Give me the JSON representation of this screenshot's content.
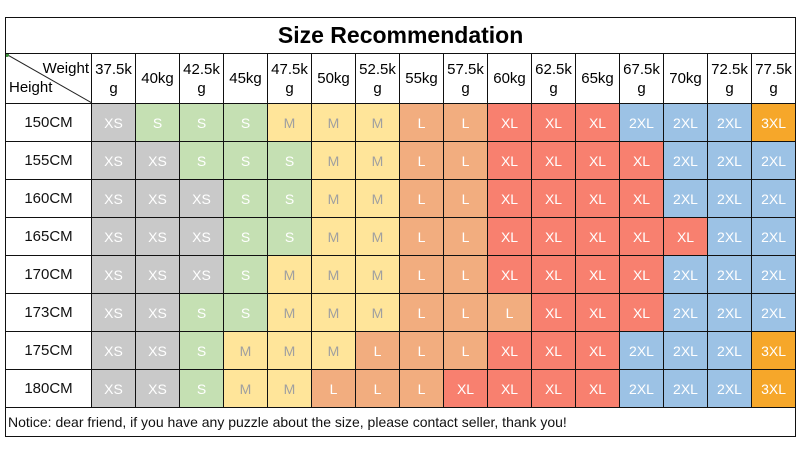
{
  "title": "Size Recommendation",
  "corner": {
    "weight_label": "Weight",
    "height_label": "Height"
  },
  "weights": [
    "37.5k g",
    "40kg",
    "42.5k g",
    "45kg",
    "47.5k g",
    "50kg",
    "52.5k g",
    "55kg",
    "57.5k g",
    "60kg",
    "62.5k g",
    "65kg",
    "67.5k g",
    "70kg",
    "72.5k g",
    "77.5k g"
  ],
  "rows": [
    {
      "height": "150CM",
      "sizes": [
        "XS",
        "S",
        "S",
        "S",
        "M",
        "M",
        "M",
        "L",
        "L",
        "XL",
        "XL",
        "XL",
        "2XL",
        "2XL",
        "2XL",
        "3XL"
      ]
    },
    {
      "height": "155CM",
      "sizes": [
        "XS",
        "XS",
        "S",
        "S",
        "S",
        "M",
        "M",
        "L",
        "L",
        "XL",
        "XL",
        "XL",
        "XL",
        "2XL",
        "2XL",
        "2XL"
      ]
    },
    {
      "height": "160CM",
      "sizes": [
        "XS",
        "XS",
        "XS",
        "S",
        "S",
        "M",
        "M",
        "L",
        "L",
        "XL",
        "XL",
        "XL",
        "XL",
        "2XL",
        "2XL",
        "2XL"
      ]
    },
    {
      "height": "165CM",
      "sizes": [
        "XS",
        "XS",
        "XS",
        "S",
        "S",
        "M",
        "M",
        "L",
        "L",
        "XL",
        "XL",
        "XL",
        "XL",
        "XL",
        "2XL",
        "2XL"
      ]
    },
    {
      "height": "170CM",
      "sizes": [
        "XS",
        "XS",
        "XS",
        "S",
        "M",
        "M",
        "M",
        "L",
        "L",
        "XL",
        "XL",
        "XL",
        "XL",
        "2XL",
        "2XL",
        "2XL"
      ]
    },
    {
      "height": "173CM",
      "sizes": [
        "XS",
        "XS",
        "S",
        "S",
        "M",
        "M",
        "M",
        "L",
        "L",
        "L",
        "XL",
        "XL",
        "XL",
        "2XL",
        "2XL",
        "2XL"
      ]
    },
    {
      "height": "175CM",
      "sizes": [
        "XS",
        "XS",
        "S",
        "M",
        "M",
        "M",
        "L",
        "L",
        "L",
        "XL",
        "XL",
        "XL",
        "2XL",
        "2XL",
        "2XL",
        "3XL"
      ]
    },
    {
      "height": "180CM",
      "sizes": [
        "XS",
        "XS",
        "S",
        "M",
        "M",
        "L",
        "L",
        "L",
        "XL",
        "XL",
        "XL",
        "XL",
        "2XL",
        "2XL",
        "2XL",
        "3XL"
      ]
    }
  ],
  "size_colors": {
    "XS": {
      "bg": "#c9c9c9",
      "fg": "#ffffff"
    },
    "S": {
      "bg": "#c5e0b3",
      "fg": "#ffffff"
    },
    "M": {
      "bg": "#ffe59a",
      "fg": "#a0a0a0"
    },
    "L": {
      "bg": "#f2ad7f",
      "fg": "#ffffff"
    },
    "XL": {
      "bg": "#f8806f",
      "fg": "#ffffff"
    },
    "2XL": {
      "bg": "#9cc2e5",
      "fg": "#ffffff"
    },
    "3XL": {
      "bg": "#f6a72a",
      "fg": "#ffffff"
    }
  },
  "notice": "Notice: dear friend, if you have any puzzle about the size, please contact seller, thank you!"
}
